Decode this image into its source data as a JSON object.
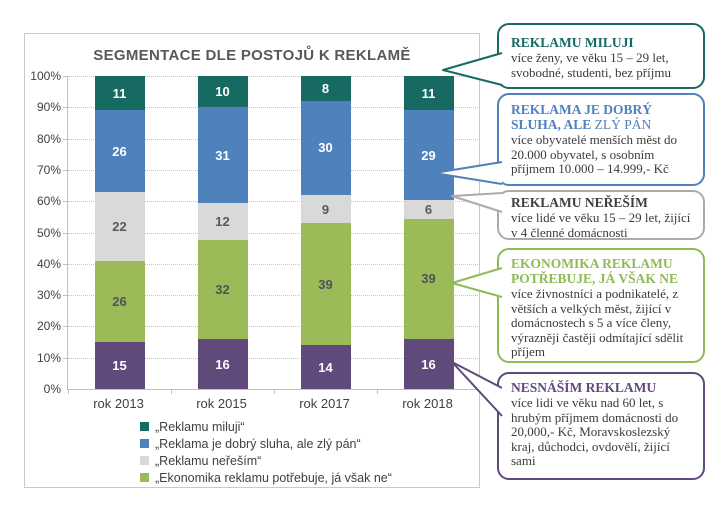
{
  "chart_data": {
    "type": "bar",
    "stacked": true,
    "percent": true,
    "title": "SEGMENTACE DLE POSTOJŮ K REKLAMĚ",
    "categories": [
      "rok 2013",
      "rok 2015",
      "rok 2017",
      "rok 2018"
    ],
    "series": [
      {
        "name": "„Reklamu miluji“",
        "values": [
          11,
          10,
          8,
          11
        ],
        "color": "#176a62",
        "label_color": "#ffffff",
        "in_legend": true
      },
      {
        "name": "„Reklama je dobrý sluha, ale zlý pán“",
        "values": [
          26,
          31,
          30,
          29
        ],
        "color": "#4f81bd",
        "label_color": "#ffffff",
        "in_legend": true
      },
      {
        "name": "„Reklamu neřeším“",
        "values": [
          22,
          12,
          9,
          6
        ],
        "color": "#d9d9d9",
        "label_color": "#595959",
        "in_legend": true
      },
      {
        "name": "„Ekonomika reklamu potřebuje, já však ne“",
        "values": [
          26,
          32,
          39,
          39
        ],
        "color": "#9bbb59",
        "label_color": "#4f5358",
        "in_legend": true
      },
      {
        "name": "Nesnáším reklamu",
        "values": [
          15,
          16,
          14,
          16
        ],
        "color": "#5f4a7b",
        "label_color": "#ffffff",
        "in_legend": false
      }
    ],
    "y_ticks": [
      "100%",
      "90%",
      "80%",
      "70%",
      "60%",
      "50%",
      "40%",
      "30%",
      "20%",
      "10%",
      "0%"
    ],
    "ylim": [
      0,
      100
    ],
    "grid": "horizontal-dotted",
    "legend_position": "bottom-left-inside"
  },
  "callouts": [
    {
      "title": "REKLAMU MILUJI",
      "title_light": "",
      "body": "více ženy, ve věku 15 – 29 let, svobodné, studenti, bez příjmu",
      "color": "#176a62",
      "title_color": "#176a62"
    },
    {
      "title": "REKLAMA JE DOBRÝ SLUHA, ALE ",
      "title_light": "ZLÝ PÁN",
      "body": "více obyvatelé menších měst do 20.000 obyvatel, s osobním příjmem 10.000 – 14.999,- Kč",
      "color": "#4f81bd",
      "title_color": "#4f81bd"
    },
    {
      "title": "REKLAMU NEŘEŠÍM",
      "title_light": "",
      "body": "více lidé ve věku 15 – 29 let, žijící v 4 členné domácnosti",
      "color": "#ababab",
      "title_color": "#3f3f3f"
    },
    {
      "title": "EKONOMIKA REKLAMU POTŘEBUJE, JÁ VŠAK NE",
      "title_light": "",
      "body": "více živnostníci a podnikatelé, z větších a velkých měst, žijící v domácnostech s 5 a více členy, výrazněji častěji odmítající sdělit příjem",
      "color": "#8fbb56",
      "title_color": "#8fbb56"
    },
    {
      "title": "NESNÁŠÍM REKLAMU",
      "title_light": "",
      "body": "více lidi ve věku nad 60 let, s hrubým příjmem domácnosti do 20,000,- Kč, Moravskoslezský kraj, důchodci, ovdovělí, žijící sami",
      "color": "#5f4a7b",
      "title_color": "#5f4a7b"
    }
  ]
}
